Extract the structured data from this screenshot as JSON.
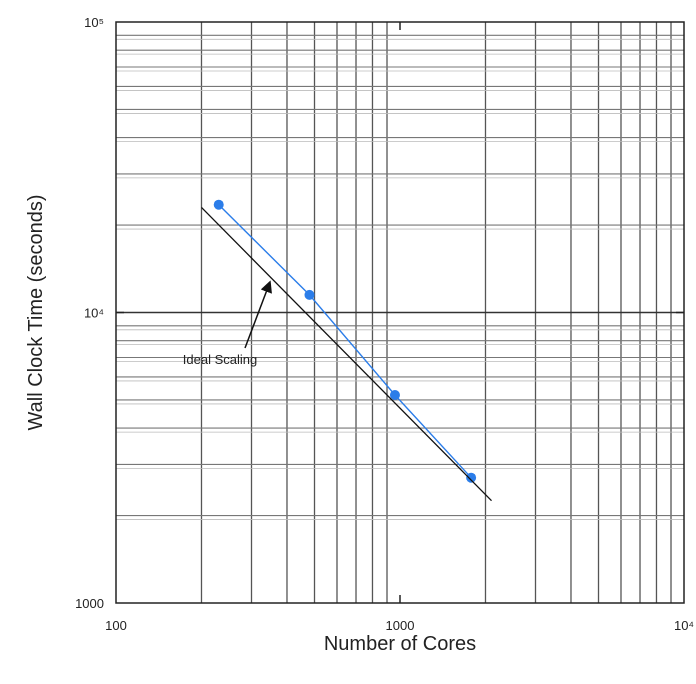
{
  "chart_data": {
    "type": "line",
    "xscale": "log",
    "yscale": "log",
    "xlim": [
      100,
      10000
    ],
    "ylim": [
      1000,
      100000
    ],
    "grid": true,
    "xlabel": "Number of Cores",
    "ylabel": "Wall Clock Time (seconds)",
    "x_tick_labels": [
      "100",
      "1000",
      "10⁴"
    ],
    "y_tick_labels": [
      "1000",
      "10⁴",
      "10⁵"
    ],
    "series": [
      {
        "role": "measured",
        "color": "#2b7de9",
        "x": [
          230,
          480,
          960,
          1780
        ],
        "y": [
          23500,
          11500,
          5200,
          2700
        ]
      },
      {
        "name": "Ideal Scaling",
        "color": "#111111",
        "x": [
          200,
          2100
        ],
        "y": [
          23000,
          2250
        ]
      }
    ],
    "annotations": [
      {
        "text": "Ideal Scaling",
        "target_series": "Ideal Scaling"
      }
    ]
  }
}
